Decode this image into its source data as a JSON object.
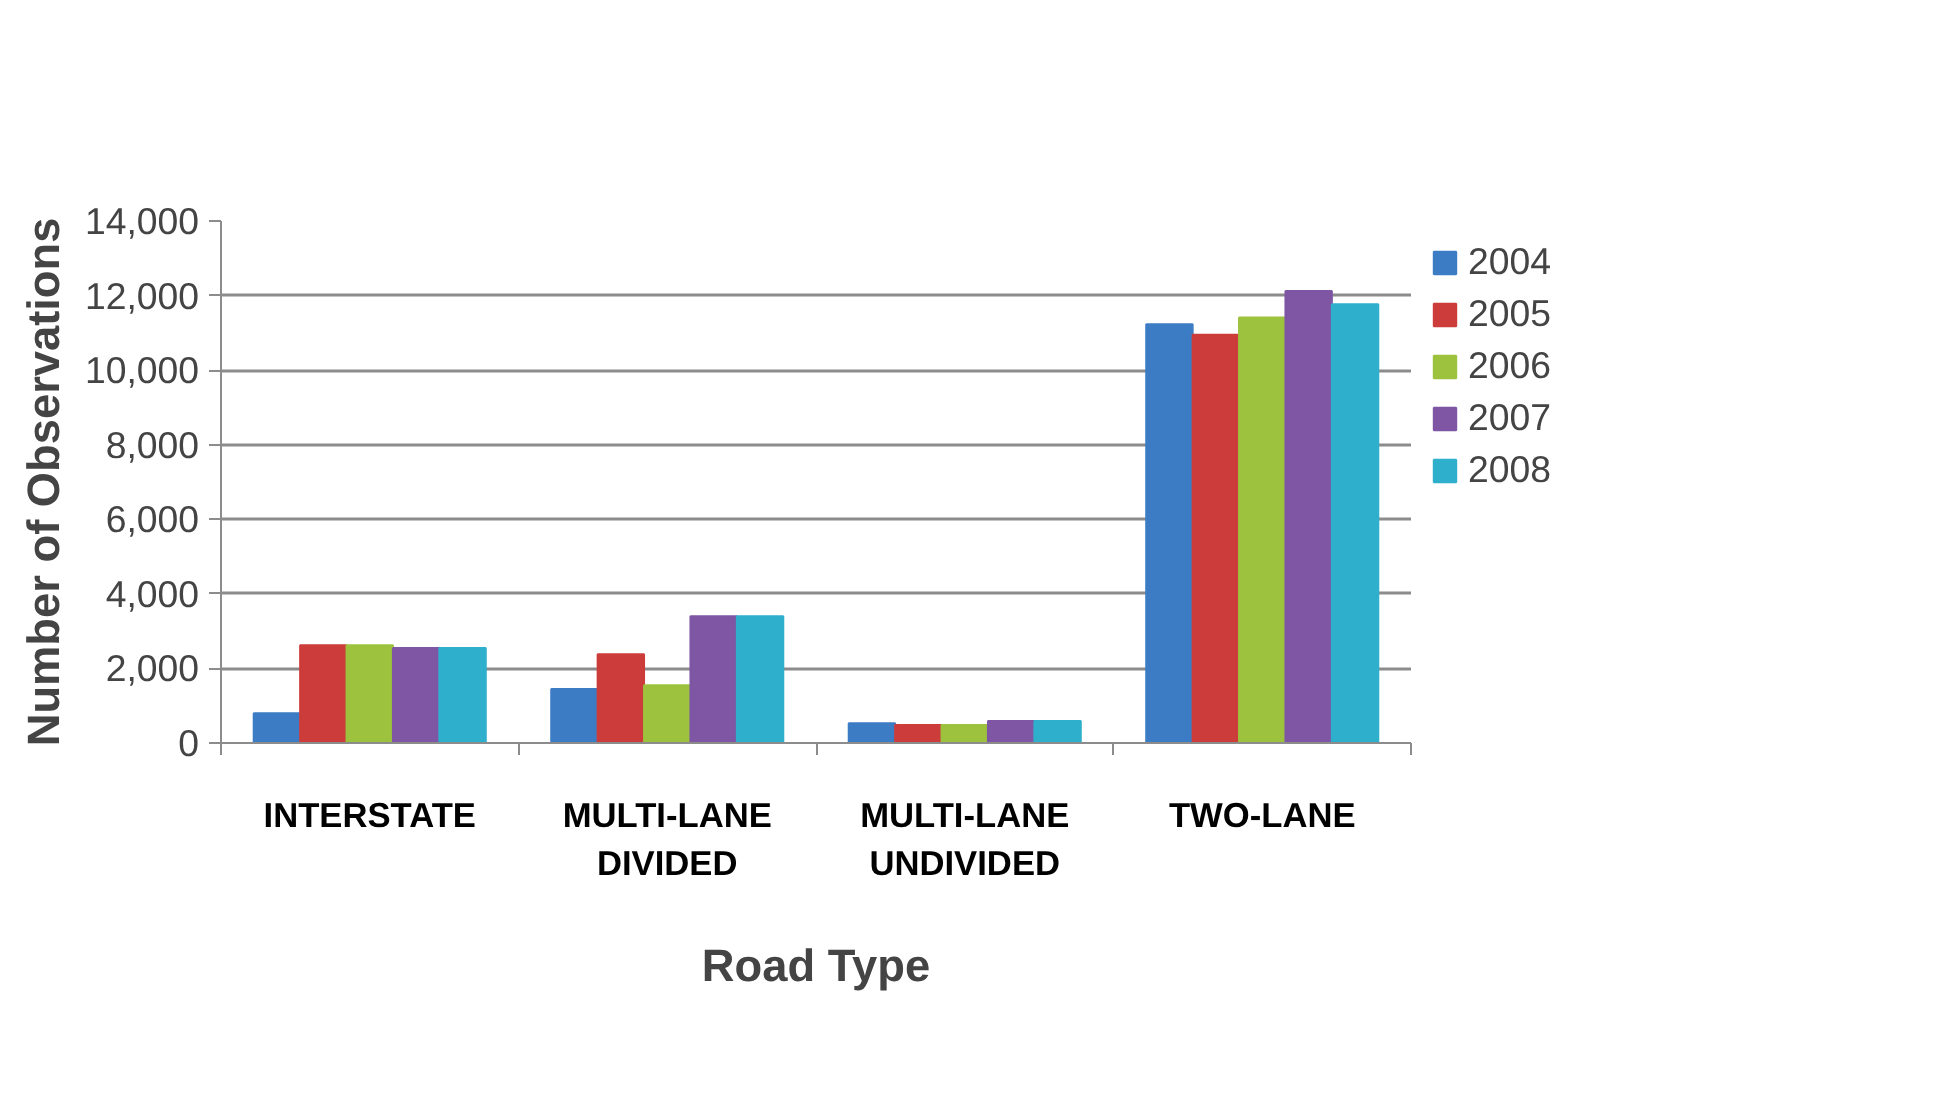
{
  "chart_data": {
    "type": "bar",
    "xlabel": "Road Type",
    "ylabel": "Number of Observations",
    "categories": [
      "INTERSTATE",
      "MULTI-LANE DIVIDED",
      "MULTI-LANE UNDIVIDED",
      "TWO-LANE"
    ],
    "series": [
      {
        "name": "2004",
        "color": "#3c7cc4",
        "values": [
          800,
          1450,
          530,
          11230
        ]
      },
      {
        "name": "2005",
        "color": "#cc3c3a",
        "values": [
          2620,
          2380,
          480,
          10950
        ]
      },
      {
        "name": "2006",
        "color": "#9cc23e",
        "values": [
          2620,
          1550,
          480,
          11410
        ]
      },
      {
        "name": "2007",
        "color": "#7e56a4",
        "values": [
          2550,
          3400,
          590,
          12120
        ]
      },
      {
        "name": "2008",
        "color": "#2eb0cc",
        "values": [
          2550,
          3400,
          590,
          11770
        ]
      }
    ],
    "ylim": [
      0,
      14000
    ],
    "yticks": [
      {
        "value": 0,
        "label": "0"
      },
      {
        "value": 2000,
        "label": "2,000"
      },
      {
        "value": 4000,
        "label": "4,000"
      },
      {
        "value": 6000,
        "label": "6,000"
      },
      {
        "value": 8000,
        "label": "8,000"
      },
      {
        "value": 10000,
        "label": "10,000"
      },
      {
        "value": 12000,
        "label": "12,000"
      },
      {
        "value": 14000,
        "label": "14,000"
      }
    ],
    "grid": "y",
    "legend": "right"
  }
}
